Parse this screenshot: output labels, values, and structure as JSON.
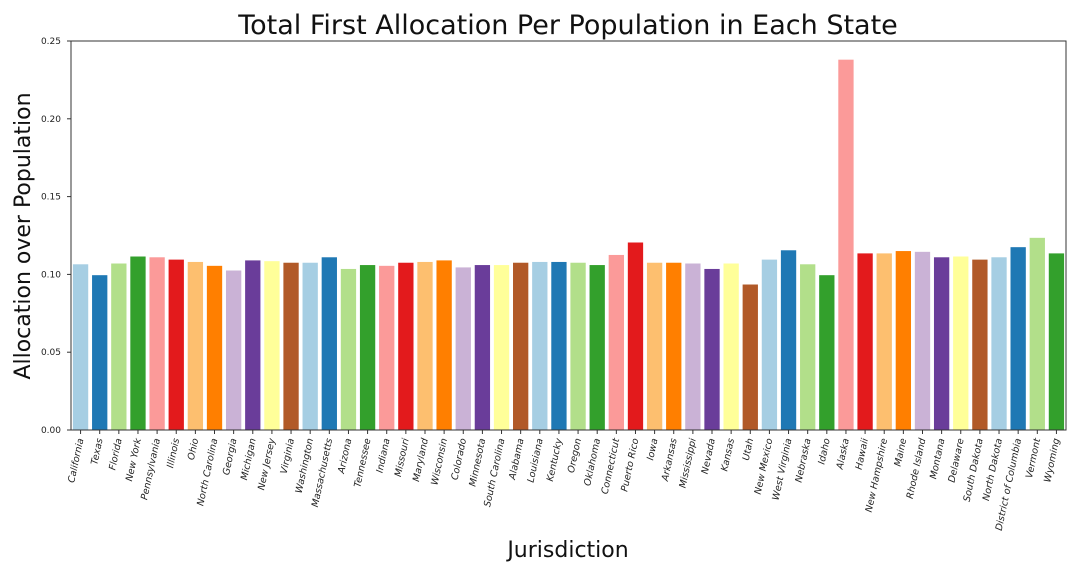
{
  "chart_data": {
    "type": "bar",
    "title": "Total First Allocation Per Population in Each State",
    "xlabel": "Jurisdiction",
    "ylabel": "Allocation over Population",
    "ylim": [
      0,
      0.25
    ],
    "yticks": [
      "0.00",
      "0.05",
      "0.10",
      "0.15",
      "0.20",
      "0.25"
    ],
    "grid": false,
    "categories": [
      "California",
      "Texas",
      "Florida",
      "New York",
      "Pennsylvania",
      "Illinois",
      "Ohio",
      "North Carolina",
      "Georgia",
      "Michigan",
      "New Jersey",
      "Virginia",
      "Washington",
      "Massachusetts",
      "Arizona",
      "Tennessee",
      "Indiana",
      "Missouri",
      "Maryland",
      "Wisconsin",
      "Colorado",
      "Minnesota",
      "South Carolina",
      "Alabama",
      "Louisiana",
      "Kentucky",
      "Oregon",
      "Oklahoma",
      "Connecticut",
      "Puerto Rico",
      "Iowa",
      "Arkansas",
      "Mississippi",
      "Nevada",
      "Kansas",
      "Utah",
      "New Mexico",
      "West Virginia",
      "Nebraska",
      "Idaho",
      "Alaska",
      "Hawaii",
      "New Hampshire",
      "Maine",
      "Rhode Island",
      "Montana",
      "Delaware",
      "South Dakota",
      "North Dakota",
      "District of Columbia",
      "Vermont",
      "Wyoming"
    ],
    "values": [
      0.1065,
      0.0995,
      0.107,
      0.1115,
      0.111,
      0.1095,
      0.108,
      0.1055,
      0.1025,
      0.109,
      0.1085,
      0.1075,
      0.1075,
      0.111,
      0.1035,
      0.106,
      0.1055,
      0.1075,
      0.108,
      0.109,
      0.1045,
      0.106,
      0.106,
      0.1075,
      0.108,
      0.108,
      0.1075,
      0.106,
      0.1125,
      0.1205,
      0.1075,
      0.1075,
      0.107,
      0.1035,
      0.107,
      0.0935,
      0.1095,
      0.1155,
      0.1065,
      0.0995,
      0.238,
      0.1135,
      0.1135,
      0.115,
      0.1145,
      0.111,
      0.1115,
      0.1095,
      0.111,
      0.1175,
      0.1235,
      0.1135
    ],
    "palette": [
      "#a6cee3",
      "#1f78b4",
      "#b2df8a",
      "#33a02c",
      "#fb9a99",
      "#e31a1c",
      "#fdbf6f",
      "#ff7f00",
      "#cab2d6",
      "#6a3d9a",
      "#ffff99",
      "#b15928"
    ]
  }
}
